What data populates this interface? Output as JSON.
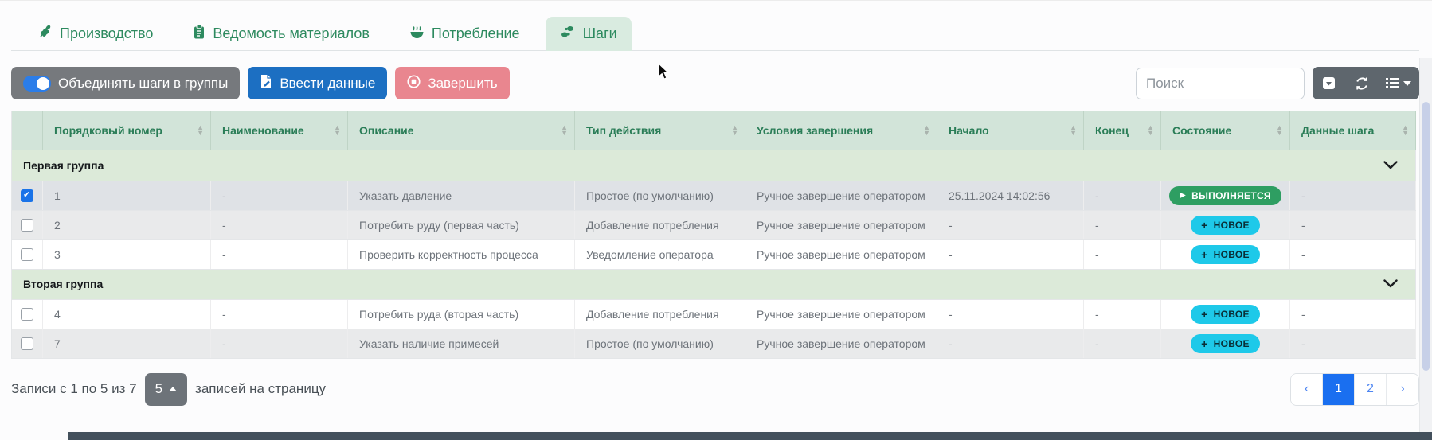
{
  "tabs": {
    "items": [
      {
        "label": "Производство",
        "icon": "wheat-icon",
        "active": false
      },
      {
        "label": "Ведомость материалов",
        "icon": "clipboard-icon",
        "active": false
      },
      {
        "label": "Потребление",
        "icon": "bowl-icon",
        "active": false
      },
      {
        "label": "Шаги",
        "icon": "shoe-prints-icon",
        "active": true
      }
    ]
  },
  "toolbar": {
    "group_toggle_label": "Объединять шаги в группы",
    "toggle_on": true,
    "enter_data_label": "Ввести данные",
    "finish_label": "Завершить",
    "search_placeholder": "Поиск",
    "icon_buttons": [
      "caret-square-down-icon",
      "refresh-icon",
      "list-columns-icon"
    ]
  },
  "table": {
    "columns": [
      {
        "label": "",
        "sortable": false
      },
      {
        "label": "Порядковый номер",
        "sortable": true
      },
      {
        "label": "Наименование",
        "sortable": true
      },
      {
        "label": "Описание",
        "sortable": true
      },
      {
        "label": "Тип действия",
        "sortable": true
      },
      {
        "label": "Условия завершения",
        "sortable": true
      },
      {
        "label": "Начало",
        "sortable": true
      },
      {
        "label": "Конец",
        "sortable": true
      },
      {
        "label": "Состояние",
        "sortable": true
      },
      {
        "label": "Данные шага",
        "sortable": true
      }
    ],
    "groups": [
      {
        "name": "Первая группа",
        "rows": [
          {
            "checked": true,
            "number": "1",
            "name": "-",
            "description": "Указать давление",
            "action_type": "Простое (по умолчанию)",
            "completion": "Ручное завершение оператором",
            "start": "25.11.2024 14:02:56",
            "end": "-",
            "status": {
              "label": "ВЫПОЛНЯЕТСЯ",
              "variant": "running",
              "icon": "play-icon"
            },
            "step_data": "-",
            "variant": "selected"
          },
          {
            "checked": false,
            "number": "2",
            "name": "-",
            "description": "Потребить руду (первая часть)",
            "action_type": "Добавление потребления",
            "completion": "Ручное завершение оператором",
            "start": "-",
            "end": "-",
            "status": {
              "label": "НОВОЕ",
              "variant": "new",
              "icon": "plus-icon"
            },
            "step_data": "-",
            "variant": "striped"
          },
          {
            "checked": false,
            "number": "3",
            "name": "-",
            "description": "Проверить корректность процесса",
            "action_type": "Уведомление оператора",
            "completion": "Ручное завершение оператором",
            "start": "-",
            "end": "-",
            "status": {
              "label": "НОВОЕ",
              "variant": "new",
              "icon": "plus-icon"
            },
            "step_data": "-",
            "variant": "plain"
          }
        ]
      },
      {
        "name": "Вторая группа",
        "rows": [
          {
            "checked": false,
            "number": "4",
            "name": "-",
            "description": "Потребить руда (вторая часть)",
            "action_type": "Добавление потребления",
            "completion": "Ручное завершение оператором",
            "start": "-",
            "end": "-",
            "status": {
              "label": "НОВОЕ",
              "variant": "new",
              "icon": "plus-icon"
            },
            "step_data": "-",
            "variant": "plain"
          },
          {
            "checked": false,
            "number": "7",
            "name": "-",
            "description": "Указать наличие примесей",
            "action_type": "Простое (по умолчанию)",
            "completion": "Ручное завершение оператором",
            "start": "-",
            "end": "-",
            "status": {
              "label": "НОВОЕ",
              "variant": "new",
              "icon": "plus-icon"
            },
            "step_data": "-",
            "variant": "striped"
          }
        ]
      }
    ]
  },
  "footer": {
    "records_info": "Записи с 1 по 5 из 7",
    "page_size_value": "5",
    "page_size_suffix": "записей на страницу",
    "pagination": {
      "prev": "‹",
      "pages": [
        "1",
        "2"
      ],
      "active_page": "1",
      "next": "›"
    }
  },
  "colors": {
    "accent_green": "#2d8a5f",
    "tab_active_bg": "#d9ebe0",
    "header_bg": "#d2e4d9",
    "group_row_bg": "#dcead9",
    "badge_running": "#2e9e62",
    "badge_new": "#1ec9e9",
    "primary_button": "#1c6fc2",
    "danger_button": "#e9868f",
    "toggle_button": "#76797d",
    "toggle_on": "#2b7de9",
    "pagination_active": "#1a6ff0"
  }
}
